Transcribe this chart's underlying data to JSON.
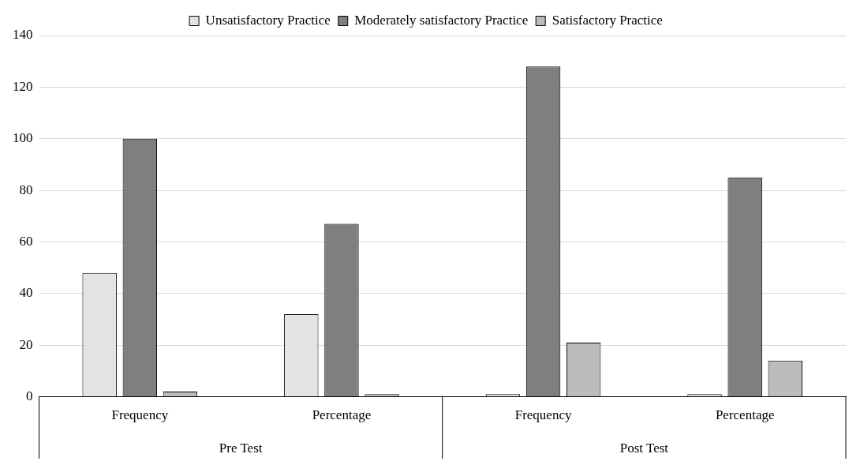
{
  "chart_data": {
    "type": "bar",
    "categories": [
      "Frequency",
      "Percentage",
      "Frequency",
      "Percentage"
    ],
    "series": [
      {
        "name": "Unsatisfactory Practice",
        "color": "#e3e3e3",
        "values": [
          48,
          32,
          1,
          1
        ]
      },
      {
        "name": "Moderately satisfactory Practice",
        "color": "#7f7f7f",
        "values": [
          100,
          67,
          128,
          85
        ]
      },
      {
        "name": "Satisfactory Practice",
        "color": "#bcbcbc",
        "values": [
          2,
          1,
          21,
          14
        ]
      }
    ],
    "annotations": [
      "Pre Test",
      "Post Test"
    ],
    "ylim": [
      0,
      140
    ],
    "yticks": [
      0,
      20,
      40,
      60,
      80,
      100,
      120,
      140
    ],
    "grid": "y",
    "legend": "top"
  }
}
